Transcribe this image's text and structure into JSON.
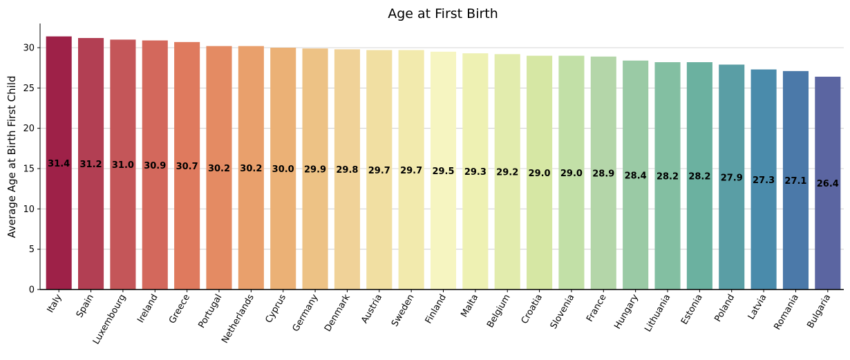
{
  "chart_data": {
    "type": "bar",
    "title": "Age at First Birth",
    "xlabel": "",
    "ylabel": "Average Age at Birth First Child",
    "ylim": [
      0,
      33
    ],
    "yticks": [
      0,
      5,
      10,
      15,
      20,
      25,
      30
    ],
    "grid": "horizontal",
    "categories": [
      "Italy",
      "Spain",
      "Luxembourg",
      "Ireland",
      "Greece",
      "Portugal",
      "Netherlands",
      "Cyprus",
      "Germany",
      "Denmark",
      "Austria",
      "Sweden",
      "Finland",
      "Malta",
      "Belgium",
      "Croatia",
      "Slovenia",
      "France",
      "Hungary",
      "Lithuania",
      "Estonia",
      "Poland",
      "Latvia",
      "Romania",
      "Bulgaria"
    ],
    "values": [
      31.4,
      31.2,
      31.0,
      30.9,
      30.7,
      30.2,
      30.2,
      30.0,
      29.9,
      29.8,
      29.7,
      29.7,
      29.5,
      29.3,
      29.2,
      29.0,
      29.0,
      28.9,
      28.4,
      28.2,
      28.2,
      27.9,
      27.3,
      27.1,
      26.4
    ],
    "data_labels": [
      "31.4",
      "31.2",
      "31.0",
      "30.9",
      "30.7",
      "30.2",
      "30.2",
      "30.0",
      "29.9",
      "29.8",
      "29.7",
      "29.7",
      "29.5",
      "29.3",
      "29.2",
      "29.0",
      "29.0",
      "28.9",
      "28.4",
      "28.2",
      "28.2",
      "27.9",
      "27.3",
      "27.1",
      "26.4"
    ],
    "colors": [
      "#9e2148",
      "#b23f53",
      "#c45659",
      "#d3685c",
      "#df7a5e",
      "#e48b63",
      "#e9a06c",
      "#ebb176",
      "#edc285",
      "#f0d298",
      "#f1dfa2",
      "#f2eaad",
      "#f6f5c1",
      "#eef1b3",
      "#e2ecad",
      "#d6e7a4",
      "#c2e0a7",
      "#b4d6a9",
      "#9acaa5",
      "#83bfa2",
      "#6bb1a0",
      "#5a9ea5",
      "#4a8bab",
      "#4b79a9",
      "#5b65a1"
    ]
  }
}
